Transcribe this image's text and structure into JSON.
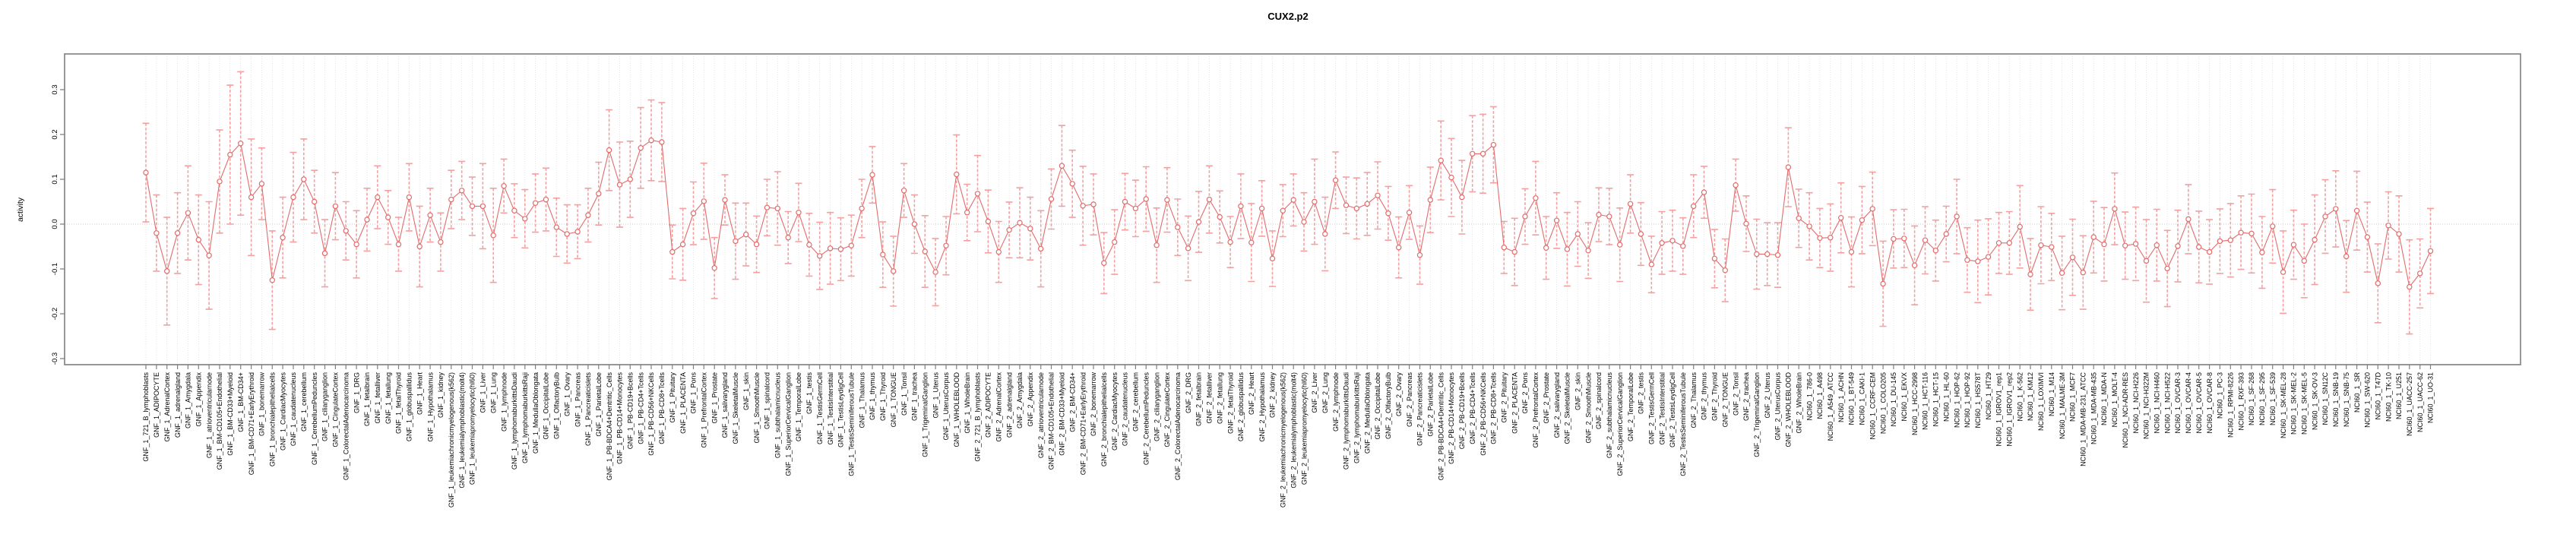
{
  "title": "CUX2.p2",
  "chart_data": {
    "type": "line",
    "title": "CUX2.p2",
    "xlabel": "",
    "ylabel": "activity",
    "ylim": [
      -0.32,
      0.38
    ],
    "yticks": [
      0.3,
      0.2,
      0.1,
      0.0,
      -0.1,
      -0.2,
      -0.3
    ],
    "ytick_labels": [
      "0.3",
      "0.2",
      "0.1",
      "0.0",
      "-0.1",
      "-0.2",
      "-0.3"
    ],
    "grid": "vertical dotted gridline at every category; dotted horizontal line at y=0",
    "legend_position": "none",
    "marker": "open-circle",
    "error_bars": true,
    "colors": {
      "point_line": "#e36b6b",
      "error_bar": "#f2a1a1",
      "gridline": "#dcdcdc",
      "zero_line": "#c8c8c8",
      "box": "#7f7f7f"
    },
    "categories": [
      "GNF_1_721_B_lymphoblasts",
      "GNF_1_ADIPOCYTE",
      "GNF_1_AdrenalCortex",
      "GNF_1_adrenalgland",
      "GNF_1_Amygdala",
      "GNF_1_Appendix",
      "GNF_1_atrioventricularnode",
      "GNF_1_BM-CD105+Endothelial",
      "GNF_1_BM-CD33+Myeloid",
      "GNF_1_BM-CD34+",
      "GNF_1_BM-CD71+EarlyErythroid",
      "GNF_1_bonemarrow",
      "GNF_1_bronchialepithelialcells",
      "GNF_1_CardiacMyocytes",
      "GNF_1_caudatenucleus",
      "GNF_1_cerebellum",
      "GNF_1_CerebellumPeduncles",
      "GNF_1_ciliaryganglion",
      "GNF_1_CingulateCortex",
      "GNF_1_ColorectalAdenocarcinoma",
      "GNF_1_DRG",
      "GNF_1_fetalbrain",
      "GNF_1_fetalliver",
      "GNF_1_fetallung",
      "GNF_1_fetalThyroid",
      "GNF_1_globuspallidus",
      "GNF_1_Heart",
      "GNF_1_Hypothalamus",
      "GNF_1_kidney",
      "GNF_1_leukemiachronicmyelogenous(k562)",
      "GNF_1_leukemialymphoblastic(molt4)",
      "GNF_1_leukemiapromyelocytic(hl60)",
      "GNF_1_Liver",
      "GNF_1_Lung",
      "GNF_1_lymphnode",
      "GNF_1_lymphomaburkittsDaudi",
      "GNF_1_lymphomaburkittsRaji",
      "GNF_1_MedullaOblongata",
      "GNF_1_OccipitalLobe",
      "GNF_1_OlfactoryBulb",
      "GNF_1_Ovary",
      "GNF_1_Pancreas",
      "GNF_1_Pancreaticislets",
      "GNF_1_ParietalLobe",
      "GNF_1_PB-BDCA4+Dentritic_Cells",
      "GNF_1_PB-CD14+Monocytes",
      "GNF_1_PB-CD19+Bcells",
      "GNF_1_PB-CD4+Tcells",
      "GNF_1_PB-CD56+NKCells",
      "GNF_1_PB-CD8+Tcells",
      "GNF_1_Pituitary",
      "GNF_1_PLACENTA",
      "GNF_1_Pons",
      "GNF_1_PrefrontalCortex",
      "GNF_1_Prostate",
      "GNF_1_salivarygland",
      "GNF_1_SkeletalMuscle",
      "GNF_1_skin",
      "GNF_1_SmoothMuscle",
      "GNF_1_spinalcord",
      "GNF_1_subthalamicnucleus",
      "GNF_1_SuperiorCervicalGanglion",
      "GNF_1_TemporalLobe",
      "GNF_1_testis",
      "GNF_1_TestisGermCell",
      "GNF_1_TestisInterstitial",
      "GNF_1_TestisLeydigCell",
      "GNF_1_TestisSeminiferousTubule",
      "GNF_1_Thalamus",
      "GNF_1_thymus",
      "GNF_1_Thyroid",
      "GNF_1_TONGUE",
      "GNF_1_Tonsil",
      "GNF_1_trachea",
      "GNF_1_TrigeminalGanglion",
      "GNF_1_Uterus",
      "GNF_1_UterusCorpus",
      "GNF_1_WHOLEBLOOD",
      "GNF_1_WholeBrain",
      "GNF_2_721_B_lymphoblasts",
      "GNF_2_ADIPOCYTE",
      "GNF_2_AdrenalCortex",
      "GNF_2_adrenalgland",
      "GNF_2_Amygdala",
      "GNF_2_Appendix",
      "GNF_2_atrioventricularnode",
      "GNF_2_BM-CD105+Endothelial",
      "GNF_2_BM-CD33+Myeloid",
      "GNF_2_BM-CD34+",
      "GNF_2_BM-CD71+EarlyErythroid",
      "GNF_2_bonemarrow",
      "GNF_2_bronchialepithelialcells",
      "GNF_2_CardiacMyocytes",
      "GNF_2_caudatenucleus",
      "GNF_2_cerebellum",
      "GNF_2_CerebellumPeduncles",
      "GNF_2_ciliaryganglion",
      "GNF_2_CingulateCortex",
      "GNF_2_ColorectalAdenocarcinoma",
      "GNF_2_DRG",
      "GNF_2_fetalbrain",
      "GNF_2_fetalliver",
      "GNF_2_fetallung",
      "GNF_2_fetalThyroid",
      "GNF_2_globuspallidus",
      "GNF_2_Heart",
      "GNF_2_Hypothalamus",
      "GNF_2_kidney",
      "GNF_2_leukemiachronicmyelogenous(k562)",
      "GNF_2_leukemialymphoblastic(molt4)",
      "GNF_2_leukemiapromyelocytic(hl60)",
      "GNF_2_Liver",
      "GNF_2_Lung",
      "GNF_2_lymphnode",
      "GNF_2_lymphomaburkittsDaudi",
      "GNF_2_lymphomaburkittsRaji",
      "GNF_2_MedullaOblongata",
      "GNF_2_OccipitalLobe",
      "GNF_2_OlfactoryBulb",
      "GNF_2_Ovary",
      "GNF_2_Pancreas",
      "GNF_2_Pancreaticislets",
      "GNF_2_ParietalLobe",
      "GNF_2_PB-BDCA4+Dentritic_Cells",
      "GNF_2_PB-CD14+Monocytes",
      "GNF_2_PB-CD19+Bcells",
      "GNF_2_PB-CD4+Tcells",
      "GNF_2_PB-CD56+NKCells",
      "GNF_2_PB-CD8+Tcells",
      "GNF_2_Pituitary",
      "GNF_2_PLACENTA",
      "GNF_2_Pons",
      "GNF_2_PrefrontalCortex",
      "GNF_2_Prostate",
      "GNF_2_salivarygland",
      "GNF_2_SkeletalMuscle",
      "GNF_2_skin",
      "GNF_2_SmoothMuscle",
      "GNF_2_spinalcord",
      "GNF_2_subthalamicnucleus",
      "GNF_2_SuperiorCervicalGanglion",
      "GNF_2_TemporalLobe",
      "GNF_2_testis",
      "GNF_2_TestisGermCell",
      "GNF_2_TestisInterstitial",
      "GNF_2_TestisLeydigCell",
      "GNF_2_TestisSeminiferousTubule",
      "GNF_2_Thalamus",
      "GNF_2_thymus",
      "GNF_2_Thyroid",
      "GNF_2_TONGUE",
      "GNF_2_Tonsil",
      "GNF_2_trachea",
      "GNF_2_TrigeminalGanglion",
      "GNF_2_Uterus",
      "GNF_2_UterusCorpus",
      "GNF_2_WHOLEBLOOD",
      "GNF_2_WholeBrain",
      "NCI60_1_786-0",
      "NCI60_1_A498",
      "NCI60_1_A549_ATCC",
      "NCI60_1_ACHN",
      "NCI60_1_BT-549",
      "NCI60_1_CAKI-1",
      "NCI60_1_CCRF-CEM",
      "NCI60_1_COLO205",
      "NCI60_1_DU-145",
      "NCI60_1_EKVX",
      "NCI60_1_HCC-2998",
      "NCI60_1_HCT-116",
      "NCI60_1_HCT-15",
      "NCI60_1_HL-60",
      "NCI60_1_HOP-62",
      "NCI60_1_HOP-92",
      "NCI60_1_HS578T",
      "NCI60_1_HT29",
      "NCI60_1_IGROV1_rep1",
      "NCI60_1_IGROV1_rep2",
      "NCI60_1_K-562",
      "NCI60_1_KM12",
      "NCI60_1_LOXIMVI",
      "NCI60_1_M14",
      "NCI60_1_MALME-3M",
      "NCI60_1_MCF7",
      "NCI60_1_MDA-MB-231_ATCC",
      "NCI60_1_MDA-MB-435",
      "NCI60_1_MDA-N",
      "NCI60_1_MOLT-4",
      "NCI60_1_NCI-ADR-RES",
      "NCI60_1_NCI-H226",
      "NCI60_1_NCI-H322M",
      "NCI60_1_NCI-H460",
      "NCI60_1_NCI-H522",
      "NCI60_1_OVCAR-3",
      "NCI60_1_OVCAR-4",
      "NCI60_1_OVCAR-5",
      "NCI60_1_OVCAR-8",
      "NCI60_1_PC-3",
      "NCI60_1_RPMI-8226",
      "NCI60_1_RXF-393",
      "NCI60_1_SF-268",
      "NCI60_1_SF-295",
      "NCI60_1_SF-539",
      "NCI60_1_SK-MEL-28",
      "NCI60_1_SK-MEL-2",
      "NCI60_1_SK-MEL-5",
      "NCI60_1_SK-OV-3",
      "NCI60_1_SN12C",
      "NCI60_1_SNB-19",
      "NCI60_1_SNB-75",
      "NCI60_1_SR",
      "NCI60_1_SW-620",
      "NCI60_1_T47D",
      "NCI60_1_TK-10",
      "NCI60_1_U251",
      "NCI60_1_UACC-257",
      "NCI60_1_UACC-62",
      "NCI60_1_UO-31"
    ],
    "values": [
      0.115,
      -0.02,
      -0.105,
      -0.02,
      0.025,
      -0.035,
      -0.07,
      0.095,
      0.155,
      0.18,
      0.06,
      0.09,
      -0.125,
      -0.03,
      0.06,
      0.1,
      0.05,
      -0.065,
      0.04,
      -0.015,
      -0.045,
      0.01,
      0.06,
      0.015,
      -0.045,
      0.06,
      -0.05,
      0.02,
      -0.04,
      0.055,
      0.075,
      0.04,
      0.04,
      -0.025,
      0.085,
      0.03,
      0.012,
      0.047,
      0.055,
      -0.007,
      -0.022,
      -0.017,
      0.02,
      0.068,
      0.165,
      0.088,
      0.1,
      0.17,
      0.187,
      0.183,
      -0.062,
      -0.045,
      0.024,
      0.051,
      -0.098,
      0.054,
      -0.038,
      -0.023,
      -0.045,
      0.037,
      0.035,
      -0.03,
      0.026,
      -0.046,
      -0.071,
      -0.054,
      -0.056,
      -0.048,
      0.035,
      0.11,
      -0.068,
      -0.105,
      0.075,
      0.0,
      -0.061,
      -0.107,
      -0.048,
      0.111,
      0.026,
      0.068,
      0.006,
      -0.062,
      -0.013,
      0.003,
      -0.01,
      -0.055,
      0.056,
      0.13,
      0.09,
      0.041,
      0.044,
      -0.087,
      -0.04,
      0.05,
      0.035,
      0.056,
      -0.047,
      0.054,
      -0.007,
      -0.054,
      0.005,
      0.055,
      0.016,
      -0.04,
      0.04,
      -0.041,
      0.035,
      -0.077,
      0.03,
      0.054,
      0.005,
      0.05,
      -0.022,
      0.098,
      0.042,
      0.035,
      0.045,
      0.064,
      0.024,
      -0.052,
      0.026,
      -0.069,
      0.054,
      0.142,
      0.104,
      0.06,
      0.157,
      0.157,
      0.177,
      -0.052,
      -0.062,
      0.017,
      0.058,
      -0.053,
      0.008,
      -0.056,
      -0.022,
      -0.059,
      0.021,
      0.017,
      -0.046,
      0.045,
      -0.022,
      -0.09,
      -0.042,
      -0.037,
      -0.049,
      0.04,
      0.071,
      -0.077,
      -0.103,
      0.087,
      0.001,
      -0.067,
      -0.067,
      -0.069,
      0.127,
      0.013,
      -0.005,
      -0.031,
      -0.03,
      0.014,
      -0.062,
      0.009,
      0.034,
      -0.133,
      -0.033,
      -0.032,
      -0.092,
      -0.036,
      -0.059,
      -0.022,
      0.017,
      -0.08,
      -0.083,
      -0.073,
      -0.042,
      -0.042,
      -0.006,
      -0.112,
      -0.047,
      -0.051,
      -0.109,
      -0.074,
      -0.108,
      -0.029,
      -0.045,
      0.034,
      -0.048,
      -0.044,
      -0.082,
      -0.047,
      -0.099,
      -0.049,
      0.011,
      -0.051,
      -0.062,
      -0.038,
      -0.036,
      -0.019,
      -0.021,
      -0.063,
      -0.005,
      -0.107,
      -0.046,
      -0.082,
      -0.035,
      0.017,
      0.034,
      -0.072,
      0.03,
      -0.029,
      -0.132,
      -0.003,
      -0.022,
      -0.14,
      -0.11,
      -0.06
    ],
    "errors": [
      0.11,
      0.085,
      0.12,
      0.09,
      0.105,
      0.1,
      0.12,
      0.115,
      0.155,
      0.16,
      0.13,
      0.08,
      0.11,
      0.09,
      0.1,
      0.09,
      0.07,
      0.075,
      0.075,
      0.065,
      0.075,
      0.07,
      0.07,
      0.06,
      0.06,
      0.075,
      0.09,
      0.06,
      0.065,
      0.065,
      0.065,
      0.065,
      0.095,
      0.105,
      0.06,
      0.06,
      0.065,
      0.065,
      0.07,
      0.065,
      0.065,
      0.06,
      0.06,
      0.07,
      0.09,
      0.095,
      0.085,
      0.09,
      0.09,
      0.088,
      0.06,
      0.08,
      0.07,
      0.085,
      0.068,
      0.056,
      0.085,
      0.07,
      0.063,
      0.063,
      0.082,
      0.058,
      0.065,
      0.07,
      0.075,
      0.08,
      0.07,
      0.068,
      0.065,
      0.063,
      0.073,
      0.078,
      0.06,
      0.065,
      0.08,
      0.075,
      0.065,
      0.088,
      0.063,
      0.085,
      0.07,
      0.068,
      0.062,
      0.078,
      0.07,
      0.085,
      0.067,
      0.09,
      0.075,
      0.088,
      0.068,
      0.068,
      0.072,
      0.063,
      0.063,
      0.072,
      0.083,
      0.072,
      0.063,
      0.072,
      0.068,
      0.075,
      0.058,
      0.057,
      0.072,
      0.087,
      0.062,
      0.062,
      0.058,
      0.058,
      0.065,
      0.095,
      0.082,
      0.063,
      0.063,
      0.068,
      0.07,
      0.075,
      0.06,
      0.068,
      0.06,
      0.065,
      0.073,
      0.088,
      0.087,
      0.082,
      0.085,
      0.088,
      0.085,
      0.058,
      0.075,
      0.062,
      0.082,
      0.07,
      0.062,
      0.082,
      0.072,
      0.062,
      0.06,
      0.063,
      0.082,
      0.065,
      0.07,
      0.063,
      0.07,
      0.068,
      0.063,
      0.07,
      0.058,
      0.065,
      0.07,
      0.058,
      0.062,
      0.078,
      0.07,
      0.072,
      0.088,
      0.065,
      0.075,
      0.066,
      0.075,
      0.078,
      0.078,
      0.075,
      0.082,
      0.095,
      0.065,
      0.065,
      0.088,
      0.075,
      0.068,
      0.062,
      0.083,
      0.072,
      0.092,
      0.085,
      0.068,
      0.07,
      0.092,
      0.08,
      0.086,
      0.075,
      0.082,
      0.085,
      0.082,
      0.08,
      0.082,
      0.08,
      0.075,
      0.082,
      0.092,
      0.08,
      0.085,
      0.08,
      0.077,
      0.08,
      0.072,
      0.072,
      0.082,
      0.082,
      0.088,
      0.08,
      0.082,
      0.092,
      0.077,
      0.082,
      0.1,
      0.082,
      0.085,
      0.08,
      0.088,
      0.078,
      0.088,
      0.075,
      0.085,
      0.105,
      0.077,
      0.095
    ]
  }
}
